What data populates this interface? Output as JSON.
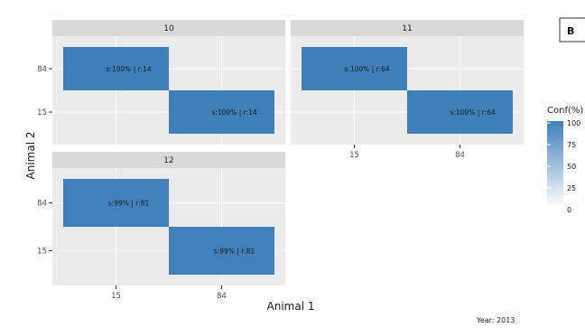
{
  "chart_data": {
    "type": "heatmap",
    "panel_letter": "B",
    "xlabel": "Animal 1",
    "ylabel": "Animal 2",
    "caption": "Year: 2013",
    "facets": [
      {
        "strip": "10",
        "x_categories": [
          "15",
          "84"
        ],
        "y_categories": [
          "84",
          "15"
        ],
        "cells": [
          {
            "x": "15",
            "y": "84",
            "label": "s:100% | r:14",
            "conf": 100
          },
          {
            "x": "84",
            "y": "15",
            "label": "s:100% | r:14",
            "conf": 100
          }
        ]
      },
      {
        "strip": "11",
        "x_categories": [
          "15",
          "84"
        ],
        "y_categories": [
          "84",
          "15"
        ],
        "cells": [
          {
            "x": "15",
            "y": "84",
            "label": "s:100% | r:64",
            "conf": 100
          },
          {
            "x": "84",
            "y": "15",
            "label": "s:100% | r:64",
            "conf": 100
          }
        ]
      },
      {
        "strip": "12",
        "x_categories": [
          "15",
          "84"
        ],
        "y_categories": [
          "84",
          "15"
        ],
        "cells": [
          {
            "x": "15",
            "y": "84",
            "label": "s:99% | r:81",
            "conf": 99
          },
          {
            "x": "84",
            "y": "15",
            "label": "s:99% | r:81",
            "conf": 99
          }
        ]
      }
    ],
    "legend": {
      "title": "Conf(%)",
      "ticks": [
        "100",
        "75",
        "50",
        "25",
        "0"
      ],
      "low_color": "#ffffff",
      "high_color": "#3f7fba"
    },
    "colors": {
      "panel_background": "#ebebeb",
      "strip_background": "#d9d9d9",
      "grid": "#ffffff"
    }
  }
}
